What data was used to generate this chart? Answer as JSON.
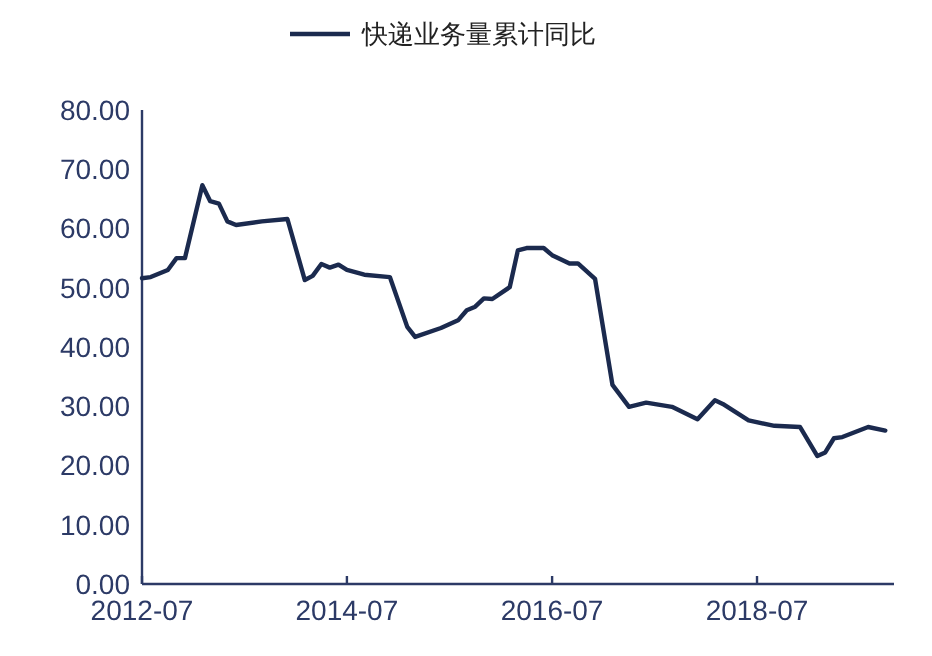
{
  "chart_data": {
    "type": "line",
    "legend": "top",
    "marker": "none",
    "line_style": "solid",
    "grid": false,
    "x": [
      "2012-07",
      "2012-08",
      "2012-10",
      "2012-11",
      "2012-12",
      "2013-02",
      "2013-03",
      "2013-04",
      "2013-05",
      "2013-06",
      "2013-09",
      "2013-12",
      "2014-02",
      "2014-03",
      "2014-04",
      "2014-05",
      "2014-06",
      "2014-07",
      "2014-09",
      "2014-12",
      "2015-02",
      "2015-03",
      "2015-06",
      "2015-08",
      "2015-09",
      "2015-10",
      "2015-11",
      "2015-12",
      "2016-02",
      "2016-03",
      "2016-04",
      "2016-06",
      "2016-07",
      "2016-09",
      "2016-10",
      "2016-12",
      "2017-02",
      "2017-04",
      "2017-06",
      "2017-09",
      "2017-12",
      "2018-02",
      "2018-03",
      "2018-06",
      "2018-09",
      "2018-12",
      "2019-02",
      "2019-03",
      "2019-04",
      "2019-05",
      "2019-08",
      "2019-10"
    ],
    "series": [
      {
        "name": "快递业务量累计同比",
        "color": "#1b2a4e",
        "values": [
          51.6,
          51.8,
          53,
          55,
          55,
          67.3,
          64.6,
          64.2,
          61.2,
          60.6,
          61.2,
          61.6,
          51.3,
          52,
          54,
          53.4,
          53.9,
          53,
          52.2,
          51.8,
          43.4,
          41.7,
          43.2,
          44.5,
          46.2,
          46.8,
          48.2,
          48.1,
          50.1,
          56.3,
          56.7,
          56.7,
          55.5,
          54.1,
          54.1,
          51.5,
          33.6,
          29.9,
          30.6,
          29.9,
          27.8,
          31,
          30.4,
          27.6,
          26.7,
          26.5,
          21.6,
          22.2,
          24.6,
          24.8,
          26.5,
          25.9
        ]
      }
    ],
    "xlim": [
      "2012-07",
      "2019-11"
    ],
    "xticks": [
      "2012-07",
      "2014-07",
      "2016-07",
      "2018-07"
    ],
    "ylim": [
      0,
      80
    ],
    "yticks": [
      {
        "value": 0,
        "label": "0.00"
      },
      {
        "value": 10,
        "label": "10.00"
      },
      {
        "value": 20,
        "label": "20.00"
      },
      {
        "value": 30,
        "label": "30.00"
      },
      {
        "value": 40,
        "label": "40.00"
      },
      {
        "value": 50,
        "label": "50.00"
      },
      {
        "value": 60,
        "label": "60.00"
      },
      {
        "value": 70,
        "label": "70.00"
      },
      {
        "value": 80,
        "label": "80.00"
      }
    ]
  }
}
